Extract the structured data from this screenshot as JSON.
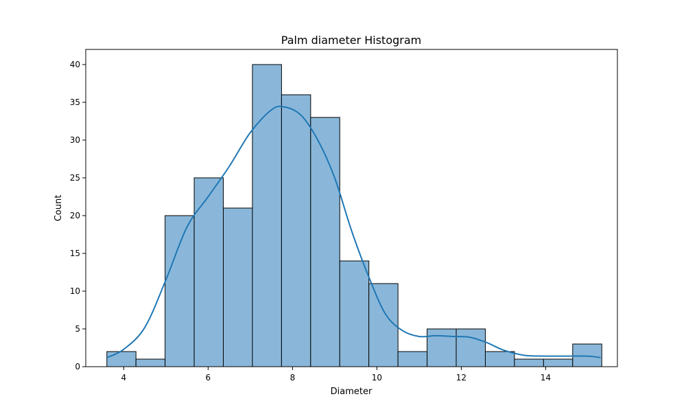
{
  "chart_data": {
    "type": "bar",
    "title": "Palm diameter Histogram",
    "xlabel": "Diameter",
    "ylabel": "Count",
    "xlim": [
      3.1,
      15.7
    ],
    "ylim": [
      0,
      42
    ],
    "xticks": [
      4,
      6,
      8,
      10,
      12,
      14
    ],
    "yticks": [
      0,
      5,
      10,
      15,
      20,
      25,
      30,
      35,
      40
    ],
    "bin_edges": [
      3.6,
      4.29,
      4.98,
      5.67,
      6.36,
      7.05,
      7.74,
      8.43,
      9.12,
      9.81,
      10.5,
      11.19,
      11.88,
      12.57,
      13.26,
      13.95,
      14.64,
      15.33
    ],
    "counts": [
      2,
      1,
      20,
      25,
      21,
      40,
      36,
      33,
      14,
      11,
      2,
      5,
      5,
      2,
      1,
      1,
      3
    ],
    "kde_curve": {
      "x": [
        3.6,
        4.0,
        4.5,
        5.0,
        5.5,
        6.0,
        6.5,
        7.0,
        7.5,
        7.8,
        8.2,
        8.6,
        9.0,
        9.4,
        9.8,
        10.2,
        10.6,
        11.0,
        11.4,
        11.8,
        12.2,
        12.6,
        13.0,
        13.5,
        14.0,
        14.5,
        15.0,
        15.3
      ],
      "y": [
        1.2,
        2.3,
        5.2,
        11.5,
        18.5,
        22.5,
        26.5,
        31.0,
        34.0,
        34.4,
        33.3,
        30.0,
        25.0,
        18.0,
        12.0,
        7.0,
        4.8,
        4.0,
        4.1,
        4.0,
        3.9,
        3.2,
        2.2,
        1.5,
        1.4,
        1.4,
        1.4,
        1.2
      ]
    },
    "grid": false,
    "colors": {
      "bar_fill": "#8ab7d9",
      "bar_edge": "#000000",
      "kde_line": "#1f77b4"
    }
  }
}
